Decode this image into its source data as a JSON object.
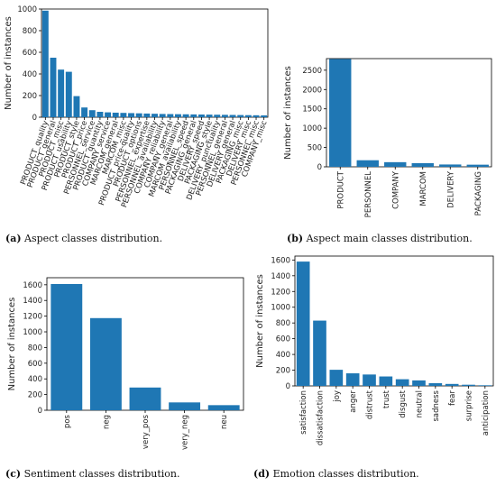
{
  "panels": [
    {
      "letter": "(a)",
      "caption": "Aspect classes distribution.",
      "chart_data": {
        "type": "bar",
        "ylabel": "Number of instances",
        "ylim": [
          0,
          1000
        ],
        "yticks": [
          0,
          200,
          400,
          600,
          800,
          1000
        ],
        "color": "#1f77b4",
        "categories": [
          "PRODUCT_quality",
          "PRODUCT_general",
          "PRODUCT_misc",
          "PRODUCT_usability",
          "PRODUCT_style",
          "PRODUCT_price",
          "PERSONNEL_service",
          "PRODUCT_quantity",
          "COMPANY_service",
          "MARCOM_general",
          "MARCOM_misc",
          "PRODUCT_price-quality",
          "PRODUCT_options",
          "PERSONNEL_expertise",
          "PERSONNEL_availability",
          "COMPANY_reliability",
          "COMPANY_general",
          "MARCOM_availability",
          "PERSONNEL_speed",
          "PACKAGING_general",
          "DELIVERY_speed",
          "PACKAGING_style",
          "DELIVERY_punctuality",
          "PERSONNEL_general",
          "DELIVERY_general",
          "PACKAGING_misc",
          "DELIVERY_misc",
          "PERSONNEL_misc",
          "COMPANY_misc"
        ],
        "values": [
          985,
          550,
          440,
          420,
          195,
          90,
          65,
          50,
          45,
          42,
          40,
          38,
          36,
          34,
          32,
          30,
          29,
          28,
          27,
          26,
          25,
          24,
          23,
          22,
          21,
          20,
          19,
          18,
          17
        ]
      }
    },
    {
      "letter": "(b)",
      "caption": "Aspect main classes distribution.",
      "chart_data": {
        "type": "bar",
        "ylabel": "Number of instances",
        "ylim": [
          0,
          2800
        ],
        "yticks": [
          0,
          500,
          1000,
          1500,
          2000,
          2500
        ],
        "color": "#1f77b4",
        "categories": [
          "PRODUCT",
          "PERSONNEL",
          "COMPANY",
          "MARCOM",
          "DELIVERY",
          "PACKAGING"
        ],
        "values": [
          2790,
          170,
          120,
          95,
          60,
          55
        ]
      }
    },
    {
      "letter": "(c)",
      "caption": "Sentiment classes distribution.",
      "chart_data": {
        "type": "bar",
        "ylabel": "Number of instances",
        "ylim": [
          0,
          1690
        ],
        "yticks": [
          0,
          200,
          400,
          600,
          800,
          1000,
          1200,
          1400,
          1600
        ],
        "color": "#1f77b4",
        "categories": [
          "pos",
          "neg",
          "very_pos",
          "very_neg",
          "neu"
        ],
        "values": [
          1610,
          1175,
          290,
          100,
          65
        ]
      }
    },
    {
      "letter": "(d)",
      "caption": "Emotion classes distribution.",
      "chart_data": {
        "type": "bar",
        "ylabel": "Number of instances",
        "ylim": [
          0,
          1650
        ],
        "yticks": [
          0,
          200,
          400,
          600,
          800,
          1000,
          1200,
          1400,
          1600
        ],
        "color": "#1f77b4",
        "categories": [
          "satisfaction",
          "dissatisfaction",
          "joy",
          "anger",
          "distrust",
          "trust",
          "disgust",
          "neutral",
          "sadness",
          "fear",
          "surprise",
          "anticipation"
        ],
        "values": [
          1580,
          830,
          205,
          160,
          145,
          120,
          85,
          70,
          35,
          25,
          15,
          8
        ]
      }
    }
  ]
}
